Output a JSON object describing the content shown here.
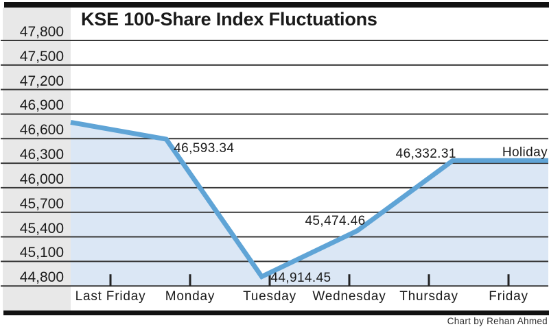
{
  "page": {
    "credit": "Chart by Rehan Ahmed"
  },
  "chart_data": {
    "type": "line",
    "title": "KSE 100-Share Index Fluctuations",
    "xlabel": "",
    "ylabel": "",
    "categories": [
      "Last Friday",
      "Monday",
      "Tuesday",
      "Wednesday",
      "Thursday",
      "Friday"
    ],
    "series": [
      {
        "name": "KSE 100-Share Index",
        "values": [
          46800,
          46593.34,
          44914.45,
          45474.46,
          46332.31,
          46332.31
        ]
      }
    ],
    "point_labels": [
      "",
      "46,593.34",
      "44,914.45",
      "45,474.46",
      "46,332.31",
      "Holiday"
    ],
    "y_ticks": [
      47800,
      47500,
      47200,
      46900,
      46600,
      46300,
      46000,
      45700,
      45400,
      45100,
      44800
    ],
    "y_tick_labels": [
      "47,800",
      "47,500",
      "47,200",
      "46,900",
      "46,600",
      "46,300",
      "46,000",
      "45,700",
      "45,400",
      "45,100",
      "44,800"
    ],
    "ylim": [
      44800,
      47800
    ],
    "grid": true,
    "legend": "none",
    "area_fill": true,
    "colors": {
      "line": "#5fa4d6",
      "fill": "#dbe7f5",
      "axis_band": "#e8e8e8",
      "grid": "#383838",
      "tick": "#222222",
      "text": "#1a1a1a",
      "rule": "#121212"
    }
  }
}
